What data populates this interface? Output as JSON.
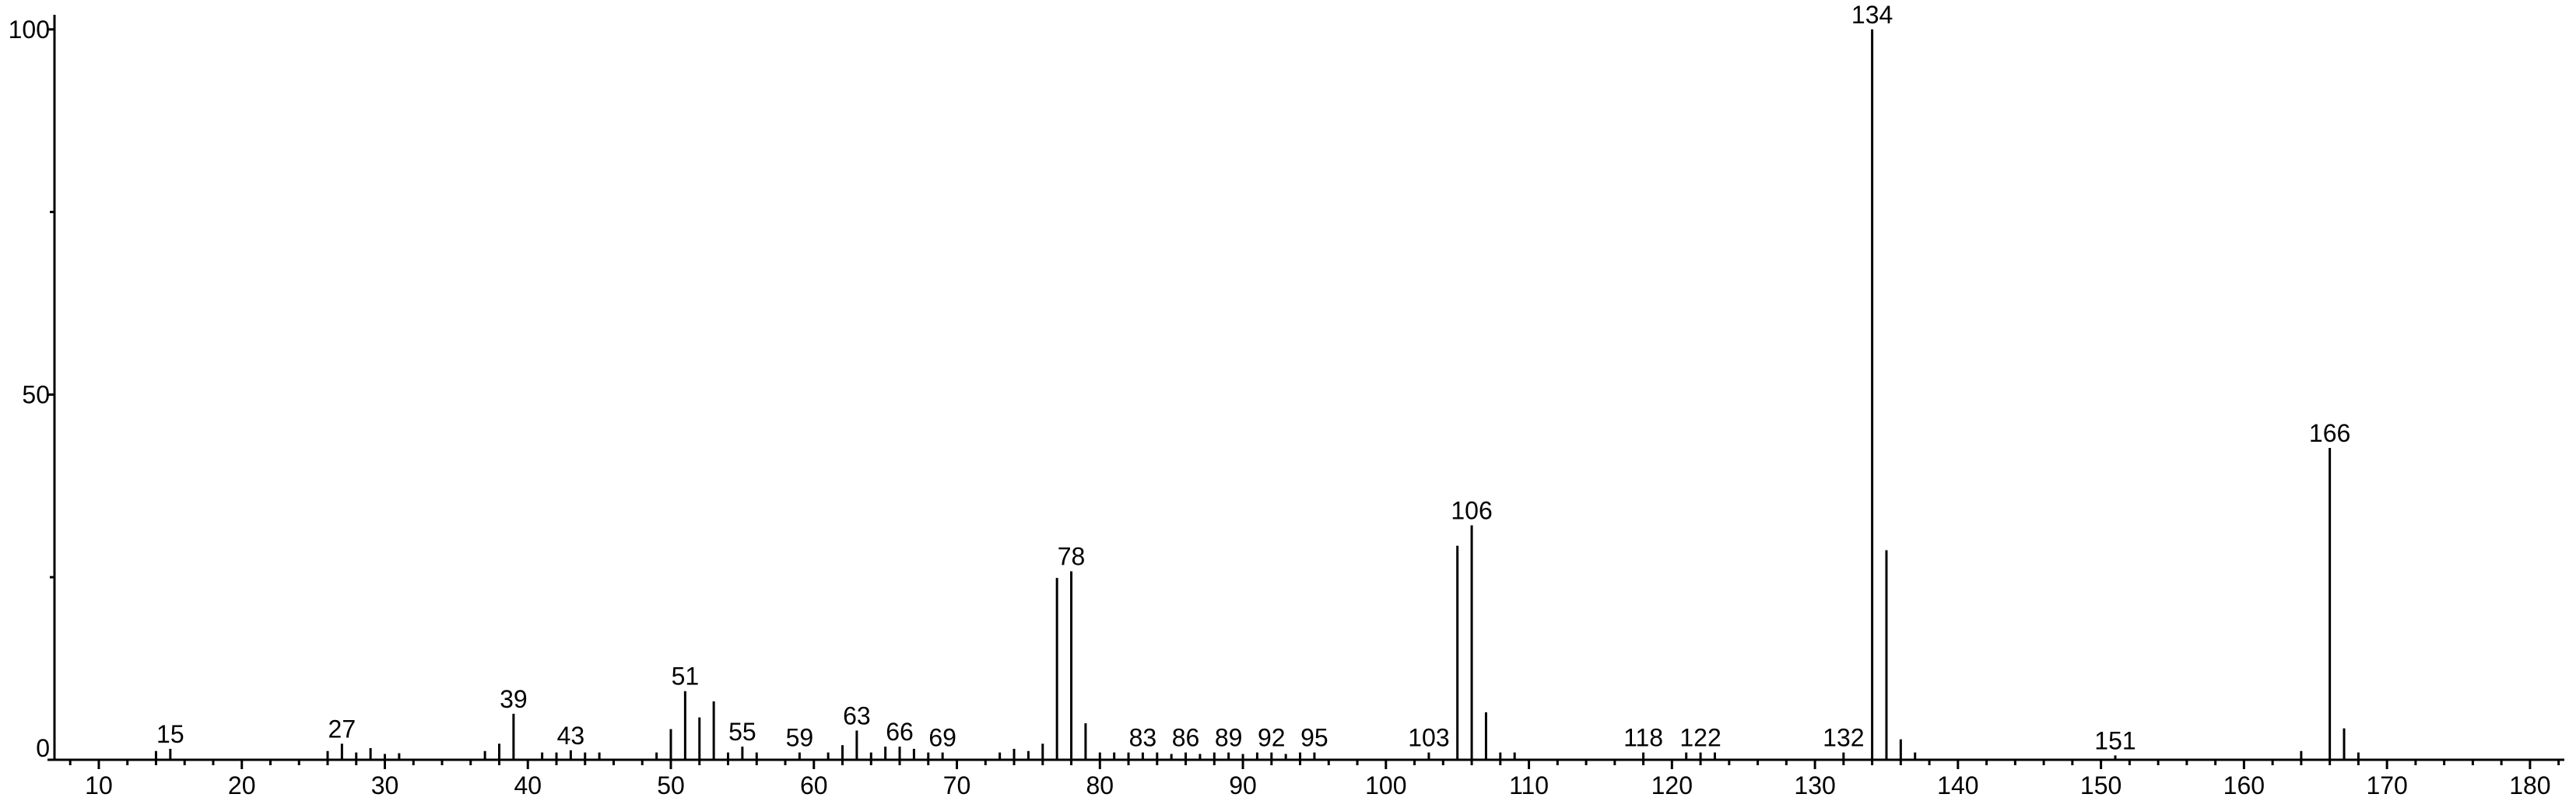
{
  "chart_data": {
    "type": "stem",
    "x": [
      14,
      15,
      26,
      27,
      28,
      29,
      30,
      31,
      37,
      38,
      39,
      41,
      42,
      43,
      44,
      45,
      49,
      50,
      51,
      52,
      53,
      54,
      55,
      56,
      59,
      61,
      62,
      63,
      64,
      65,
      66,
      67,
      68,
      69,
      73,
      74,
      75,
      76,
      77,
      78,
      79,
      80,
      81,
      82,
      83,
      84,
      85,
      86,
      87,
      88,
      89,
      90,
      91,
      92,
      93,
      94,
      95,
      103,
      105,
      106,
      107,
      108,
      109,
      118,
      121,
      122,
      123,
      132,
      134,
      135,
      136,
      137,
      151,
      164,
      166,
      167,
      168
    ],
    "values": [
      1.2,
      1.5,
      1.2,
      2.2,
      1.0,
      1.6,
      0.8,
      0.9,
      1.2,
      2.2,
      6.3,
      1.0,
      1.0,
      1.3,
      1.0,
      1.0,
      1.0,
      4.2,
      9.4,
      5.8,
      8.0,
      1.0,
      1.8,
      1.0,
      1.0,
      1.0,
      2.0,
      4.0,
      1.0,
      1.8,
      1.8,
      1.5,
      1.0,
      1.0,
      1.0,
      1.5,
      1.2,
      2.2,
      24.9,
      25.8,
      5.0,
      1.0,
      1.0,
      1.0,
      1.0,
      1.0,
      0.8,
      1.0,
      0.8,
      1.0,
      1.0,
      0.8,
      1.0,
      1.0,
      0.8,
      1.0,
      1.0,
      1.0,
      29.3,
      32.1,
      6.5,
      1.0,
      1.0,
      1.0,
      1.0,
      1.0,
      1.0,
      1.0,
      100,
      28.7,
      2.8,
      1.0,
      0.6,
      1.2,
      42.7,
      4.3,
      1.0
    ],
    "annotate": [
      false,
      true,
      false,
      true,
      false,
      false,
      false,
      false,
      false,
      false,
      true,
      false,
      false,
      true,
      false,
      false,
      false,
      false,
      true,
      false,
      false,
      false,
      true,
      false,
      true,
      false,
      false,
      true,
      false,
      false,
      true,
      false,
      false,
      true,
      false,
      false,
      false,
      false,
      false,
      true,
      false,
      false,
      false,
      false,
      true,
      false,
      false,
      true,
      false,
      false,
      true,
      false,
      false,
      true,
      false,
      false,
      true,
      true,
      false,
      true,
      false,
      false,
      false,
      true,
      false,
      true,
      false,
      true,
      true,
      false,
      false,
      false,
      true,
      false,
      true,
      false,
      false
    ],
    "color": "#000000",
    "xlim": [
      6.9,
      182.4
    ],
    "xticks": [
      10,
      20,
      30,
      40,
      50,
      60,
      70,
      80,
      90,
      100,
      110,
      120,
      130,
      140,
      150,
      160,
      170,
      180
    ],
    "xminorticks": [
      8,
      12,
      14,
      16,
      18,
      22,
      24,
      26,
      28,
      32,
      34,
      36,
      38,
      42,
      44,
      46,
      48,
      52,
      54,
      56,
      58,
      62,
      64,
      66,
      68,
      72,
      74,
      76,
      78,
      82,
      84,
      86,
      88,
      92,
      94,
      96,
      98,
      102,
      104,
      106,
      108,
      112,
      114,
      116,
      118,
      122,
      124,
      126,
      128,
      132,
      134,
      136,
      138,
      142,
      144,
      146,
      148,
      152,
      154,
      156,
      158,
      162,
      164,
      166,
      168,
      172,
      174,
      176,
      178,
      182
    ],
    "ylim": [
      0,
      102
    ],
    "yticks": [
      0,
      50,
      100
    ],
    "yminorticks": [
      25,
      75
    ]
  }
}
